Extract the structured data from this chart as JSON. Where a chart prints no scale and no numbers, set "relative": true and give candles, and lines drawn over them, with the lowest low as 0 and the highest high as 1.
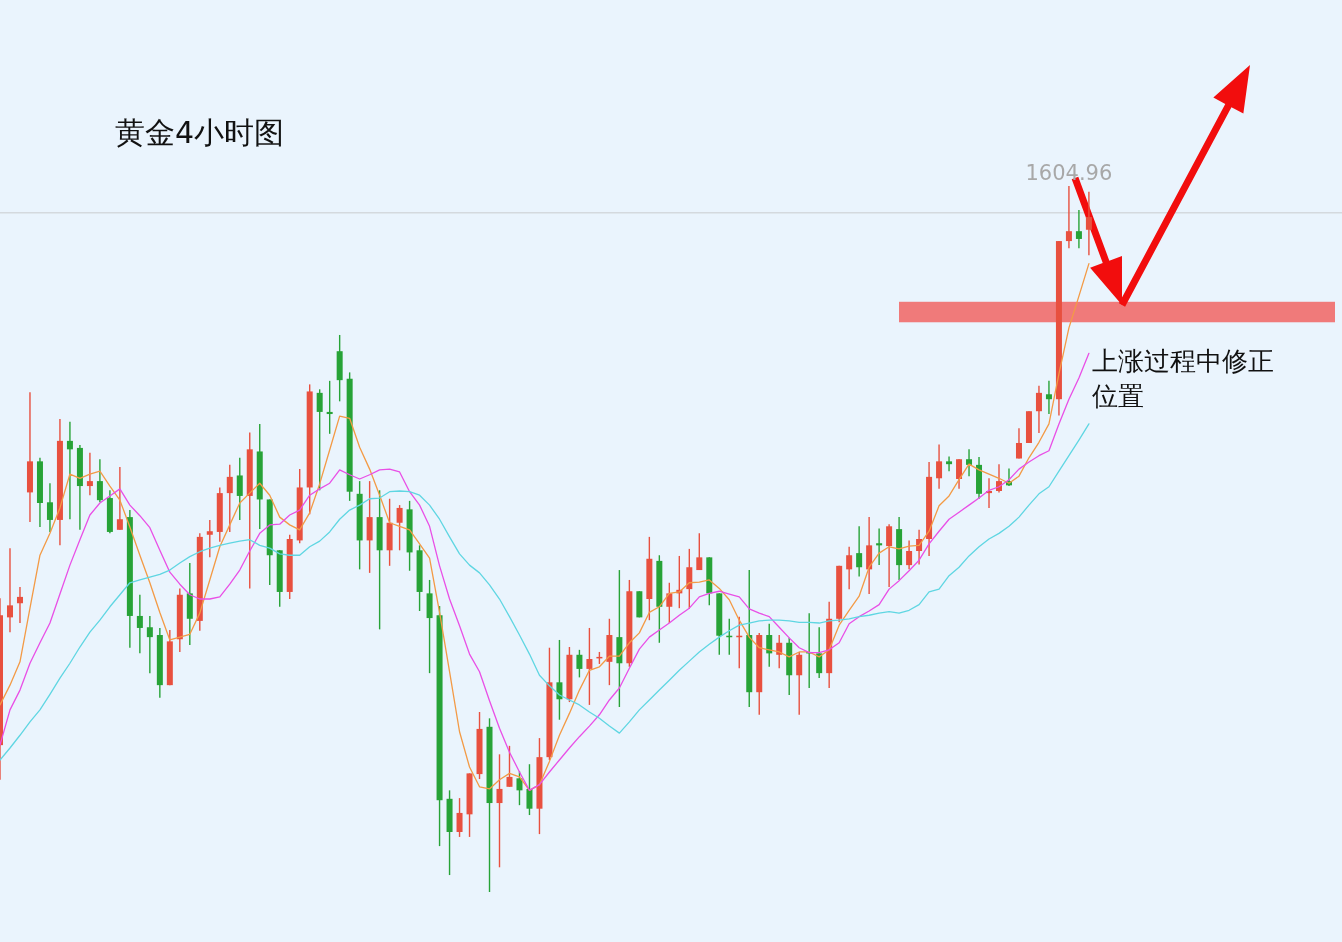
{
  "chart_data": {
    "type": "candlestick",
    "title": "黄金4小时图",
    "relative": true,
    "categories": [
      null,
      null,
      null,
      null,
      null,
      null,
      null,
      null,
      null,
      null,
      null,
      null,
      null,
      null,
      null,
      null,
      null,
      null,
      null,
      null,
      null,
      null,
      null,
      null,
      null,
      null,
      null,
      null,
      null,
      null,
      null,
      null,
      null,
      null,
      null,
      null,
      null,
      null,
      null,
      null,
      null,
      null,
      null,
      null,
      null,
      null,
      null,
      null,
      null,
      null,
      null,
      null,
      null,
      null,
      null,
      null,
      null,
      null,
      null,
      null,
      null,
      null,
      null,
      null,
      null,
      null,
      null,
      null,
      null,
      null,
      null,
      null,
      null,
      null,
      null,
      null,
      null,
      null,
      null,
      null,
      null,
      null,
      null,
      null,
      null,
      null,
      null,
      null,
      null,
      null,
      null,
      null,
      null,
      null,
      null,
      null,
      null,
      null,
      null,
      null,
      null,
      null,
      null,
      null,
      null,
      null,
      null,
      null,
      null,
      null
    ],
    "ohlc": [
      [
        0.208,
        0.416,
        0.159,
        0.392
      ],
      [
        0.389,
        0.487,
        0.368,
        0.406
      ],
      [
        0.409,
        0.432,
        0.381,
        0.418
      ],
      [
        0.566,
        0.708,
        0.524,
        0.61
      ],
      [
        0.61,
        0.615,
        0.517,
        0.551
      ],
      [
        0.552,
        0.579,
        0.51,
        0.527
      ],
      [
        0.527,
        0.67,
        0.491,
        0.639
      ],
      [
        0.639,
        0.666,
        0.528,
        0.627
      ],
      [
        0.629,
        0.633,
        0.513,
        0.575
      ],
      [
        0.575,
        0.622,
        0.562,
        0.582
      ],
      [
        0.582,
        0.613,
        0.552,
        0.555
      ],
      [
        0.558,
        0.569,
        0.508,
        0.51
      ],
      [
        0.513,
        0.602,
        0.513,
        0.528
      ],
      [
        0.531,
        0.541,
        0.346,
        0.391
      ],
      [
        0.391,
        0.421,
        0.338,
        0.374
      ],
      [
        0.375,
        0.391,
        0.31,
        0.361
      ],
      [
        0.364,
        0.374,
        0.275,
        0.293
      ],
      [
        0.293,
        0.371,
        0.293,
        0.355
      ],
      [
        0.358,
        0.43,
        0.34,
        0.421
      ],
      [
        0.423,
        0.466,
        0.35,
        0.387
      ],
      [
        0.384,
        0.508,
        0.37,
        0.503
      ],
      [
        0.506,
        0.527,
        0.474,
        0.511
      ],
      [
        0.51,
        0.573,
        0.496,
        0.565
      ],
      [
        0.565,
        0.605,
        0.51,
        0.588
      ],
      [
        0.59,
        0.615,
        0.527,
        0.561
      ],
      [
        0.561,
        0.651,
        0.43,
        0.627
      ],
      [
        0.624,
        0.663,
        0.514,
        0.556
      ],
      [
        0.556,
        0.556,
        0.435,
        0.477
      ],
      [
        0.484,
        0.484,
        0.404,
        0.425
      ],
      [
        0.425,
        0.506,
        0.415,
        0.5
      ],
      [
        0.498,
        0.599,
        0.494,
        0.573
      ],
      [
        0.573,
        0.719,
        0.535,
        0.709
      ],
      [
        0.707,
        0.712,
        0.569,
        0.68
      ],
      [
        0.68,
        0.724,
        0.649,
        0.677
      ],
      [
        0.766,
        0.789,
        0.695,
        0.725
      ],
      [
        0.727,
        0.736,
        0.554,
        0.567
      ],
      [
        0.564,
        0.582,
        0.457,
        0.498
      ],
      [
        0.498,
        0.582,
        0.452,
        0.531
      ],
      [
        0.531,
        0.569,
        0.372,
        0.484
      ],
      [
        0.484,
        0.557,
        0.462,
        0.523
      ],
      [
        0.523,
        0.548,
        0.484,
        0.544
      ],
      [
        0.542,
        0.554,
        0.455,
        0.481
      ],
      [
        0.484,
        0.491,
        0.398,
        0.425
      ],
      [
        0.423,
        0.442,
        0.31,
        0.388
      ],
      [
        0.392,
        0.405,
        0.065,
        0.13
      ],
      [
        0.132,
        0.144,
        0.024,
        0.085
      ],
      [
        0.085,
        0.133,
        0.078,
        0.112
      ],
      [
        0.11,
        0.168,
        0.078,
        0.168
      ],
      [
        0.167,
        0.255,
        0.16,
        0.231
      ],
      [
        0.234,
        0.246,
        0,
        0.126
      ],
      [
        0.126,
        0.195,
        0.035,
        0.146
      ],
      [
        0.149,
        0.207,
        0.149,
        0.163
      ],
      [
        0.161,
        0.171,
        0.123,
        0.144
      ],
      [
        0.146,
        0.181,
        0.109,
        0.118
      ],
      [
        0.118,
        0.218,
        0.082,
        0.191
      ],
      [
        0.191,
        0.346,
        0.187,
        0.297
      ],
      [
        0.297,
        0.357,
        0.244,
        0.273
      ],
      [
        0.273,
        0.347,
        0.269,
        0.336
      ],
      [
        0.336,
        0.343,
        0.304,
        0.316
      ],
      [
        0.316,
        0.374,
        0.265,
        0.33
      ],
      [
        0.331,
        0.34,
        0.323,
        0.333
      ],
      [
        0.326,
        0.387,
        0.293,
        0.364
      ],
      [
        0.361,
        0.456,
        0.262,
        0.324
      ],
      [
        0.324,
        0.442,
        0.319,
        0.426
      ],
      [
        0.426,
        0.426,
        0.389,
        0.389
      ],
      [
        0.415,
        0.503,
        0.385,
        0.472
      ],
      [
        0.469,
        0.477,
        0.353,
        0.404
      ],
      [
        0.404,
        0.438,
        0.381,
        0.423
      ],
      [
        0.423,
        0.476,
        0.402,
        0.428
      ],
      [
        0.429,
        0.486,
        0.401,
        0.46
      ],
      [
        0.456,
        0.508,
        0.456,
        0.474
      ],
      [
        0.474,
        0.474,
        0.406,
        0.423
      ],
      [
        0.423,
        0.423,
        0.336,
        0.363
      ],
      [
        0.363,
        0.387,
        0.336,
        0.361
      ],
      [
        0.361,
        0.39,
        0.317,
        0.363
      ],
      [
        0.364,
        0.456,
        0.262,
        0.283
      ],
      [
        0.283,
        0.367,
        0.251,
        0.364
      ],
      [
        0.364,
        0.38,
        0.319,
        0.338
      ],
      [
        0.336,
        0.364,
        0.317,
        0.353
      ],
      [
        0.353,
        0.36,
        0.279,
        0.307
      ],
      [
        0.307,
        0.34,
        0.251,
        0.336
      ],
      [
        0.34,
        0.395,
        0.289,
        0.338
      ],
      [
        0.338,
        0.375,
        0.303,
        0.31
      ],
      [
        0.31,
        0.411,
        0.289,
        0.387
      ],
      [
        0.387,
        0.462,
        0.382,
        0.462
      ],
      [
        0.457,
        0.489,
        0.429,
        0.477
      ],
      [
        0.48,
        0.518,
        0.447,
        0.46
      ],
      [
        0.457,
        0.531,
        0.422,
        0.491
      ],
      [
        0.494,
        0.515,
        0.463,
        0.491
      ],
      [
        0.49,
        0.521,
        0.432,
        0.518
      ],
      [
        0.514,
        0.531,
        0.442,
        0.463
      ],
      [
        0.463,
        0.498,
        0.457,
        0.483
      ],
      [
        0.483,
        0.513,
        0.464,
        0.5
      ],
      [
        0.5,
        0.609,
        0.476,
        0.588
      ],
      [
        0.586,
        0.634,
        0.571,
        0.61
      ],
      [
        0.61,
        0.617,
        0.596,
        0.606
      ],
      [
        0.585,
        0.613,
        0.571,
        0.613
      ],
      [
        0.613,
        0.627,
        0.589,
        0.605
      ],
      [
        0.605,
        0.616,
        0.557,
        0.564
      ],
      [
        0.565,
        0.586,
        0.544,
        0.568
      ],
      [
        0.568,
        0.606,
        0.566,
        0.582
      ],
      [
        0.582,
        0.6,
        0.575,
        0.576
      ],
      [
        0.614,
        0.657,
        0.614,
        0.636
      ],
      [
        0.636,
        0.681,
        0.636,
        0.681
      ],
      [
        0.681,
        0.717,
        0.65,
        0.707
      ],
      [
        0.705,
        0.724,
        0.677,
        0.698
      ],
      [
        0.698,
        0.922,
        0.675,
        0.922
      ],
      [
        0.922,
        1,
        0.912,
        0.936
      ],
      [
        0.936,
        0.966,
        0.912,
        0.925
      ],
      [
        0.938,
        0.992,
        0.902,
        0.956
      ]
    ],
    "series": [
      {
        "type": "line",
        "color": "#f39a45",
        "values": [
          0.265,
          0.293,
          0.326,
          0.402,
          0.477,
          0.508,
          0.544,
          0.592,
          0.586,
          0.592,
          0.596,
          0.575,
          0.555,
          0.517,
          0.477,
          0.438,
          0.396,
          0.357,
          0.361,
          0.365,
          0.395,
          0.442,
          0.489,
          0.52,
          0.551,
          0.565,
          0.579,
          0.562,
          0.531,
          0.52,
          0.513,
          0.537,
          0.578,
          0.626,
          0.674,
          0.671,
          0.63,
          0.599,
          0.562,
          0.523,
          0.518,
          0.513,
          0.493,
          0.473,
          0.396,
          0.312,
          0.227,
          0.177,
          0.149,
          0.146,
          0.159,
          0.168,
          0.163,
          0.144,
          0.152,
          0.185,
          0.222,
          0.253,
          0.286,
          0.314,
          0.319,
          0.334,
          0.334,
          0.353,
          0.367,
          0.396,
          0.404,
          0.423,
          0.425,
          0.438,
          0.439,
          0.442,
          0.43,
          0.414,
          0.385,
          0.361,
          0.346,
          0.343,
          0.34,
          0.333,
          0.34,
          0.34,
          0.333,
          0.343,
          0.378,
          0.399,
          0.419,
          0.46,
          0.48,
          0.489,
          0.486,
          0.49,
          0.491,
          0.511,
          0.547,
          0.561,
          0.584,
          0.606,
          0.598,
          0.592,
          0.586,
          0.579,
          0.589,
          0.615,
          0.637,
          0.663,
          0.734,
          0.799,
          0.844,
          0.89
        ]
      },
      {
        "type": "line",
        "color": "#e94fe6",
        "values": [
          0.208,
          0.258,
          0.286,
          0.324,
          0.353,
          0.381,
          0.422,
          0.463,
          0.499,
          0.534,
          0.551,
          0.561,
          0.571,
          0.548,
          0.533,
          0.516,
          0.484,
          0.453,
          0.436,
          0.421,
          0.415,
          0.415,
          0.418,
          0.436,
          0.456,
          0.483,
          0.508,
          0.52,
          0.521,
          0.534,
          0.541,
          0.562,
          0.571,
          0.579,
          0.598,
          0.591,
          0.585,
          0.591,
          0.598,
          0.599,
          0.595,
          0.567,
          0.548,
          0.518,
          0.462,
          0.415,
          0.377,
          0.337,
          0.312,
          0.271,
          0.232,
          0.198,
          0.17,
          0.144,
          0.152,
          0.17,
          0.187,
          0.204,
          0.22,
          0.235,
          0.251,
          0.272,
          0.289,
          0.317,
          0.344,
          0.361,
          0.371,
          0.381,
          0.392,
          0.402,
          0.418,
          0.423,
          0.426,
          0.422,
          0.418,
          0.401,
          0.395,
          0.39,
          0.375,
          0.36,
          0.346,
          0.339,
          0.339,
          0.343,
          0.353,
          0.38,
          0.39,
          0.398,
          0.407,
          0.429,
          0.441,
          0.455,
          0.47,
          0.493,
          0.511,
          0.528,
          0.538,
          0.548,
          0.558,
          0.569,
          0.574,
          0.584,
          0.599,
          0.609,
          0.618,
          0.625,
          0.663,
          0.698,
          0.728,
          0.763
        ]
      },
      {
        "type": "line",
        "color": "#5fd6e2",
        "values": [
          0.187,
          0.204,
          0.222,
          0.241,
          0.258,
          0.28,
          0.303,
          0.324,
          0.347,
          0.368,
          0.385,
          0.404,
          0.421,
          0.438,
          0.442,
          0.446,
          0.45,
          0.456,
          0.466,
          0.475,
          0.482,
          0.487,
          0.491,
          0.494,
          0.497,
          0.499,
          0.491,
          0.487,
          0.479,
          0.477,
          0.477,
          0.489,
          0.497,
          0.51,
          0.528,
          0.541,
          0.548,
          0.557,
          0.558,
          0.567,
          0.568,
          0.567,
          0.562,
          0.548,
          0.528,
          0.503,
          0.479,
          0.463,
          0.452,
          0.435,
          0.415,
          0.39,
          0.364,
          0.337,
          0.307,
          0.292,
          0.279,
          0.272,
          0.265,
          0.255,
          0.246,
          0.235,
          0.225,
          0.241,
          0.258,
          0.272,
          0.286,
          0.3,
          0.314,
          0.327,
          0.34,
          0.351,
          0.361,
          0.37,
          0.378,
          0.381,
          0.384,
          0.385,
          0.385,
          0.384,
          0.382,
          0.382,
          0.381,
          0.384,
          0.385,
          0.387,
          0.39,
          0.392,
          0.395,
          0.397,
          0.395,
          0.399,
          0.407,
          0.425,
          0.429,
          0.448,
          0.46,
          0.476,
          0.489,
          0.5,
          0.508,
          0.518,
          0.531,
          0.548,
          0.564,
          0.574,
          0.596,
          0.618,
          0.64,
          0.663
        ]
      }
    ],
    "bands": [
      {
        "axis": "y",
        "from": 0.807,
        "to": 0.836,
        "color": "#f07373"
      }
    ],
    "ref_lines": [
      {
        "axis": "y",
        "value": 0.962,
        "color": "#d4d9de"
      }
    ],
    "annotations": [
      "1604.96",
      "上涨过程中修正位置"
    ]
  }
}
